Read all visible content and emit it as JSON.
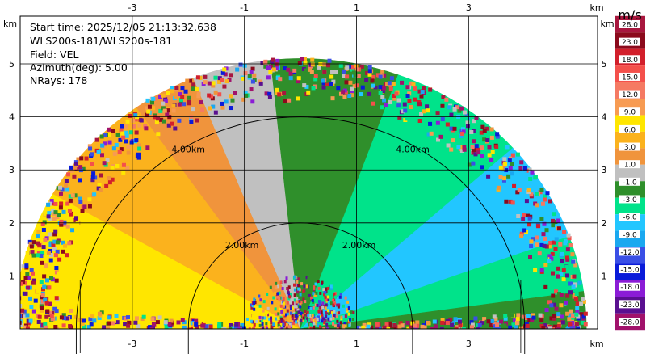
{
  "info": {
    "start_time": "Start time: 2025/12/05 21:13:32.638",
    "instrument": "WLS200s-181/WLS200s-181",
    "field": "Field: VEL",
    "azimuth": "Azimuth(deg): 5.00",
    "nrays": "NRays: 178"
  },
  "chart_data": {
    "type": "heatmap",
    "projection": "RHI / PPI sector scan (velocity field)",
    "field": "VEL",
    "units": "m/s",
    "x_unit_label": "km",
    "y_unit_label": "km",
    "xlim": [
      -5.0,
      5.3
    ],
    "ylim": [
      0.0,
      5.9
    ],
    "x_ticks": [
      -3,
      -1,
      1,
      3
    ],
    "x_tick_labels": [
      "-3",
      "-1",
      "1",
      "3"
    ],
    "y_ticks": [
      1,
      2,
      3,
      4,
      5
    ],
    "y_tick_labels": [
      "1",
      "2",
      "3",
      "4",
      "5"
    ],
    "grid": true,
    "max_range_km": 5.1,
    "range_rings_km": [
      2.0,
      4.0
    ],
    "range_ring_labels": [
      "2.00km",
      "4.00km"
    ],
    "colorbar": {
      "boundaries": [
        28.0,
        23.0,
        18.0,
        15.0,
        12.0,
        9.0,
        6.0,
        3.0,
        1.0,
        -1.0,
        -3.0,
        -6.0,
        -9.0,
        -12.0,
        -15.0,
        -18.0,
        -23.0,
        -28.0
      ],
      "labels": [
        "28.0",
        "23.0",
        "18.0",
        "15.0",
        "12.0",
        "9.0",
        "6.0",
        "3.0",
        "1.0",
        "-1.0",
        "-3.0",
        "-6.0",
        "-9.0",
        "-12.0",
        "-15.0",
        "-18.0",
        "-23.0",
        "-28.0"
      ],
      "colors": [
        "#a8173e",
        "#8b0a1c",
        "#d21f2b",
        "#f4504b",
        "#f57a63",
        "#f79b52",
        "#ffe600",
        "#fbb21d",
        "#f0943c",
        "#c0c0c0",
        "#2f8f2b",
        "#00e38a",
        "#22c6ff",
        "#1aa8f0",
        "#3a4fe6",
        "#0a1bd9",
        "#8b1cd6",
        "#5a1090",
        "#a1126b"
      ]
    },
    "sectors": [
      {
        "az_from": 180,
        "az_to": 150,
        "value": 7.5,
        "color": "#ffe600"
      },
      {
        "az_from": 150,
        "az_to": 125,
        "value": 4.5,
        "color": "#fbb21d"
      },
      {
        "az_from": 125,
        "az_to": 112,
        "value": 2.0,
        "color": "#f0943c"
      },
      {
        "az_from": 112,
        "az_to": 96,
        "value": 0.0,
        "color": "#c0c0c0"
      },
      {
        "az_from": 96,
        "az_to": 70,
        "value": -2.0,
        "color": "#2f8f2b"
      },
      {
        "az_from": 70,
        "az_to": 42,
        "value": -4.5,
        "color": "#00e38a"
      },
      {
        "az_from": 42,
        "az_to": 20,
        "value": -7.5,
        "color": "#22c6ff"
      },
      {
        "az_from": 20,
        "az_to": 8,
        "value": -4.5,
        "color": "#00e38a"
      },
      {
        "az_from": 8,
        "az_to": 0,
        "value": -2.0,
        "color": "#2f8f2b"
      }
    ],
    "noise_outer_range_km": [
      4.3,
      5.1
    ],
    "noise_inner_range_km": [
      0.0,
      1.0
    ]
  }
}
